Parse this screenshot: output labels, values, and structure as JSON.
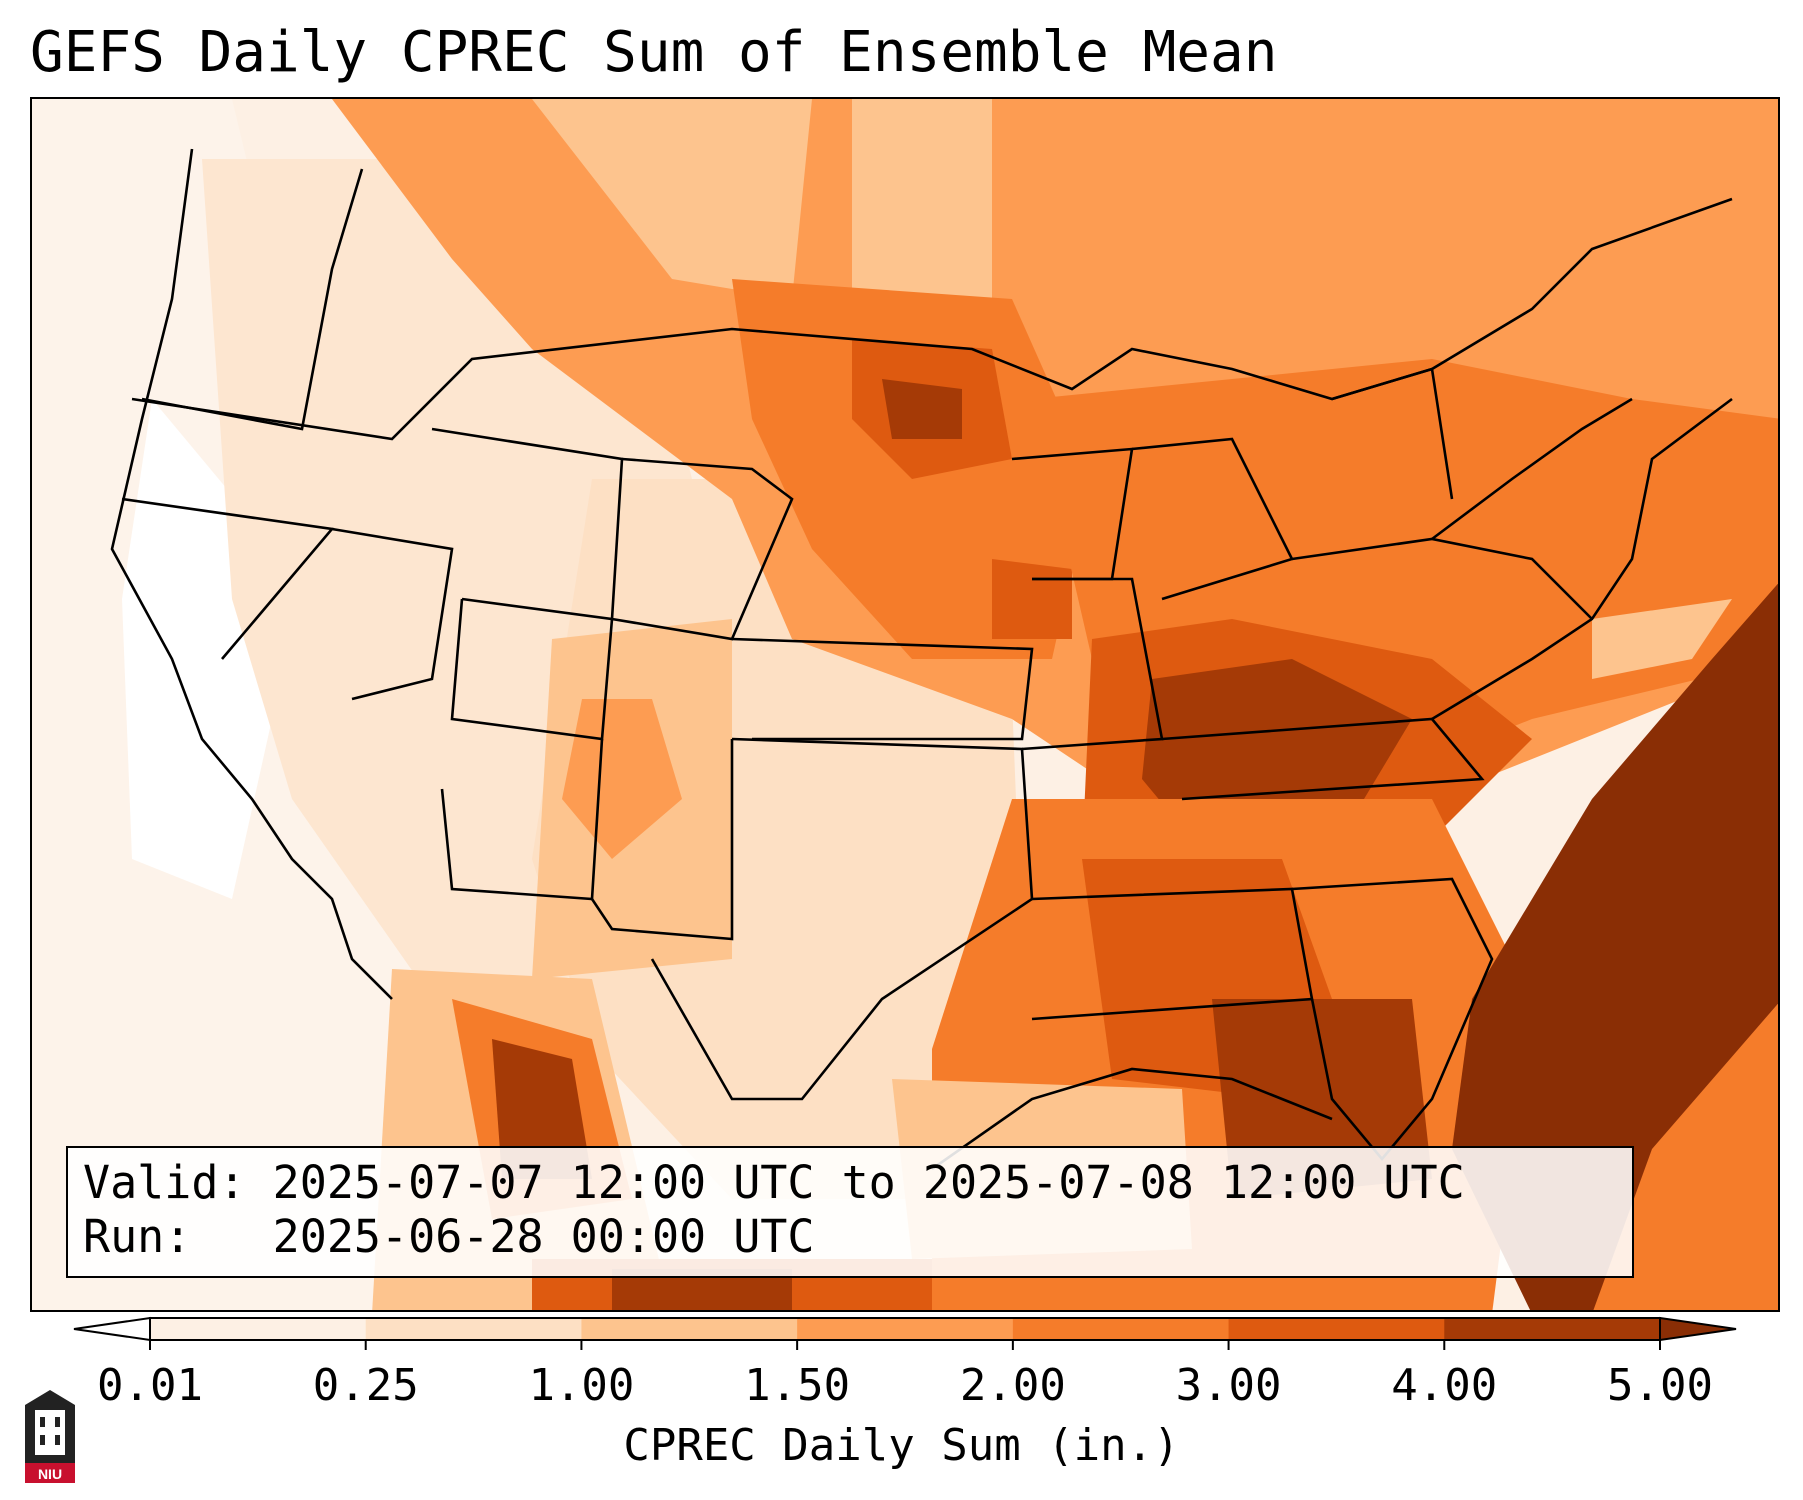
{
  "map": {
    "title": "GEFS Daily CPREC Sum of Ensemble Mean",
    "valid_line": "Valid: 2025-07-07 12:00 UTC to 2025-07-08 12:00 UTC",
    "run_line": "Run:   2025-06-28 00:00 UTC",
    "region": "Contiguous United States",
    "fill_colors": [
      "#fdf0e4",
      "#fde0c4",
      "#fdc48e",
      "#fd9c52",
      "#f57c2a",
      "#de5a10",
      "#a53a06",
      "#8a2e05"
    ]
  },
  "colorbar": {
    "label": "CPREC Daily Sum (in.)",
    "ticks": [
      "0.01",
      "0.25",
      "1.00",
      "1.50",
      "2.00",
      "3.00",
      "4.00",
      "5.00"
    ],
    "colors": [
      "#fdf0e4",
      "#fde0c4",
      "#fdc48e",
      "#fd9c52",
      "#f57c2a",
      "#de5a10",
      "#a53a06"
    ],
    "under_color": "#ffffff",
    "over_color": "#8a2e05"
  },
  "logo": {
    "text": "NIU"
  }
}
